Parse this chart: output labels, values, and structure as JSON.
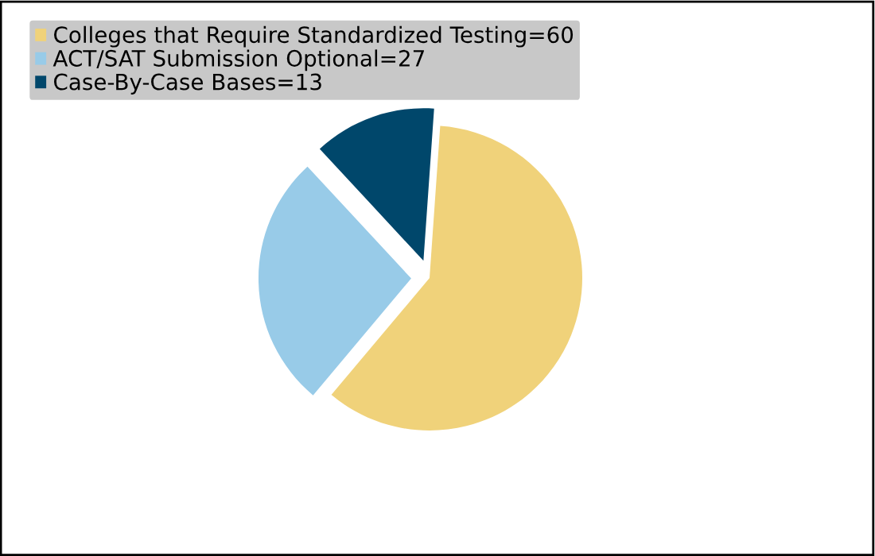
{
  "chart_data": {
    "type": "pie",
    "categories": [
      "Colleges that Require Standardized Testing=60",
      "ACT/SAT Submission Optional=27",
      "Case-By-Case Bases=13"
    ],
    "values": [
      60,
      27,
      13
    ],
    "colors": [
      "#f0d27a",
      "#98cbe8",
      "#00476b"
    ],
    "legend": "top left"
  }
}
